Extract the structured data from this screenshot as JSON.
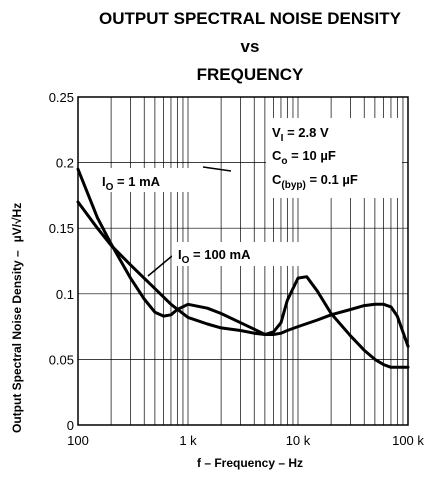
{
  "chart_data": {
    "type": "line",
    "title": [
      "OUTPUT SPECTRAL NOISE DENSITY",
      "vs",
      "FREQUENCY"
    ],
    "xlabel": "f – Frequency – Hz",
    "ylabel": "Output Spectral Noise Density –",
    "ylabel_unit": "µV/√Hz",
    "x_scale": "log",
    "xlim": [
      100,
      100000
    ],
    "ylim": [
      0,
      0.25
    ],
    "x_ticks": [
      100,
      1000,
      10000,
      100000
    ],
    "x_tick_labels": [
      "100",
      "1 k",
      "10 k",
      "100 k"
    ],
    "y_ticks": [
      0,
      0.05,
      0.1,
      0.15,
      0.2,
      0.25
    ],
    "y_tick_labels": [
      "0",
      "0.05",
      "0.1",
      "0.15",
      "0.2",
      "0.25"
    ],
    "grid": true,
    "conditions": [
      {
        "main": "V",
        "sub": "I",
        "rest": " = 2.8 V"
      },
      {
        "main": "C",
        "sub": "o",
        "rest": " = 10 µF"
      },
      {
        "main": "C",
        "sub": "(byp)",
        "rest": " = 0.1 µF"
      }
    ],
    "series": [
      {
        "name": "1 mA",
        "label_main": "I",
        "label_sub": "O",
        "label_rest": " = 1 mA",
        "x": [
          100,
          150,
          200,
          300,
          400,
          500,
          600,
          700,
          800,
          1000,
          1500,
          2000,
          3000,
          4000,
          5000,
          6000,
          7000,
          8000,
          10000,
          12000,
          15000,
          20000,
          30000,
          40000,
          50000,
          60000,
          70000,
          80000,
          100000
        ],
        "y": [
          0.195,
          0.158,
          0.138,
          0.112,
          0.096,
          0.086,
          0.083,
          0.084,
          0.088,
          0.092,
          0.089,
          0.085,
          0.078,
          0.073,
          0.069,
          0.071,
          0.078,
          0.095,
          0.112,
          0.113,
          0.102,
          0.085,
          0.068,
          0.057,
          0.05,
          0.046,
          0.044,
          0.044,
          0.044
        ]
      },
      {
        "name": "100 mA",
        "label_main": "I",
        "label_sub": "O",
        "label_rest": " = 100 mA",
        "x": [
          100,
          150,
          200,
          300,
          500,
          700,
          1000,
          1500,
          2000,
          3000,
          4000,
          5000,
          6000,
          7000,
          8000,
          10000,
          15000,
          20000,
          30000,
          40000,
          50000,
          60000,
          70000,
          80000,
          100000
        ],
        "y": [
          0.17,
          0.15,
          0.137,
          0.122,
          0.104,
          0.092,
          0.082,
          0.077,
          0.074,
          0.072,
          0.07,
          0.069,
          0.069,
          0.07,
          0.072,
          0.075,
          0.08,
          0.084,
          0.088,
          0.091,
          0.092,
          0.092,
          0.09,
          0.083,
          0.06
        ]
      }
    ]
  }
}
